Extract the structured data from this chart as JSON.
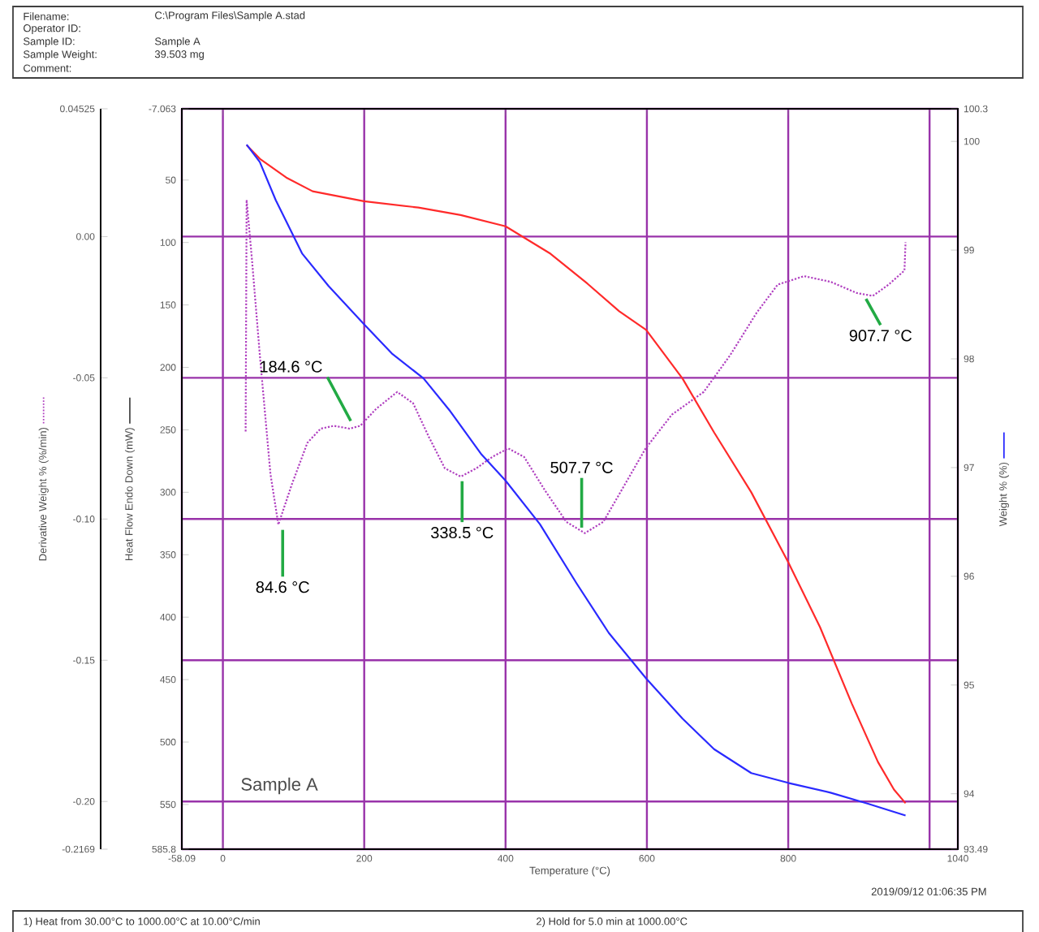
{
  "chart_data": {
    "type": "line",
    "xlabel": "Temperature (°C)",
    "ylabel": "Derivative Weight % (%/min)",
    "y2label": "Weight % (%)",
    "y3label": "Heat Flow Endo Down (mW)",
    "xlim": [
      -58.09,
      1040
    ],
    "xticks": [
      -58.09,
      0,
      200,
      400,
      600,
      800,
      {
        "value": 1000,
        "label": null
      },
      1040
    ],
    "ylim": [
      -0.2169,
      0.04525
    ],
    "yticks": [
      -0.2169,
      {
        "value": -0.2,
        "label": "-0.20"
      },
      -0.15,
      {
        "value": -0.1,
        "label": "-0.10"
      },
      -0.05,
      {
        "value": 0,
        "label": "0.00"
      },
      0.04525
    ],
    "y2lim": [
      93.49,
      100.3
    ],
    "y2ticks": [
      93.49,
      94,
      95,
      96,
      97,
      98,
      99,
      100,
      100.3
    ],
    "y3lim": [
      585.8,
      -7.063
    ],
    "y3ticks": [
      585.8,
      550,
      500,
      450,
      400,
      350,
      300,
      250,
      200,
      150,
      100,
      50,
      -7.063
    ],
    "grid": true,
    "series": [
      {
        "axis": "y",
        "color": "#b040c0",
        "line_style": "dotted",
        "x": [
          32.2,
          33.6,
          41.1,
          52.3,
          67.3,
          78.5,
          97.2,
          119.6,
          138.3,
          157,
          179.4,
          194.4,
          216.8,
          246.7,
          269.2,
          291.6,
          314,
          336.5,
          358.9,
          381.3,
          403.8,
          426.2,
          456.1,
          486,
          512.2,
          538.3,
          568.3,
          598.2,
          635.5,
          680.4,
          717.8,
          755.2,
          785.1,
          822.5,
          859.9,
          897.2,
          919.7,
          942.1,
          964.5,
          966
        ],
        "values": [
          -0.069,
          0.013,
          -0.008,
          -0.042,
          -0.084,
          -0.102,
          -0.088,
          -0.073,
          -0.068,
          -0.067,
          -0.068,
          -0.067,
          -0.061,
          -0.055,
          -0.059,
          -0.071,
          -0.082,
          -0.085,
          -0.082,
          -0.078,
          -0.075,
          -0.078,
          -0.09,
          -0.101,
          -0.105,
          -0.101,
          -0.088,
          -0.075,
          -0.063,
          -0.055,
          -0.042,
          -0.027,
          -0.017,
          -0.014,
          -0.016,
          -0.02,
          -0.021,
          -0.017,
          -0.012,
          -0.002
        ]
      },
      {
        "axis": "y3",
        "color": "#ff2a2a",
        "line_style": "solid",
        "x": [
          33.6,
          52.3,
          89.7,
          127,
          199.6,
          276.6,
          336.5,
          400,
          463.6,
          516,
          560.8,
          599,
          650.5,
          695,
          747.7,
          800,
          845,
          889.8,
          927,
          949.6,
          966
        ],
        "values": [
          22,
          33,
          48,
          59,
          67,
          72,
          78,
          87,
          109,
          133,
          155,
          170,
          209,
          252,
          300,
          356,
          408,
          469,
          516,
          538,
          549
        ]
      },
      {
        "axis": "y2",
        "color": "#2a2aff",
        "line_style": "solid",
        "x": [
          33.6,
          52.3,
          74.8,
          112,
          149.5,
          199.6,
          239,
          284,
          321.5,
          366,
          400,
          448.6,
          501,
          546,
          599,
          650.5,
          695,
          747.7,
          800,
          859.8,
          912,
          966
        ],
        "values": [
          99.97,
          99.81,
          99.46,
          98.97,
          98.67,
          98.32,
          98.05,
          97.82,
          97.52,
          97.12,
          96.88,
          96.48,
          95.93,
          95.48,
          95.06,
          94.69,
          94.41,
          94.19,
          94.1,
          94.01,
          93.91,
          93.8
        ]
      }
    ],
    "annotations": [
      "Filename:",
      "C:\\Program Files\\Sample A.stad",
      "Operator ID:",
      "Sample ID:",
      "Sample A",
      "Sample Weight:",
      "39.503 mg",
      "Comment:",
      "Sample A",
      "2019/09/12 01:06:35 PM",
      "1)  Heat from 30.00°C to 1000.00°C at 10.00°C/min",
      "2)  Hold for 5.0 min at 1000.00°C",
      {
        "text": "84.6 °C",
        "x": 84.6,
        "y": -0.102
      },
      {
        "text": "184.6 °C",
        "x": 184.6,
        "y": -0.067
      },
      {
        "text": "338.5 °C",
        "x": 338.5,
        "y": -0.085
      },
      {
        "text": "507.7 °C",
        "x": 507.7,
        "y": -0.105
      },
      {
        "text": "907.7 °C",
        "x": 907.7,
        "y": -0.021
      }
    ]
  }
}
